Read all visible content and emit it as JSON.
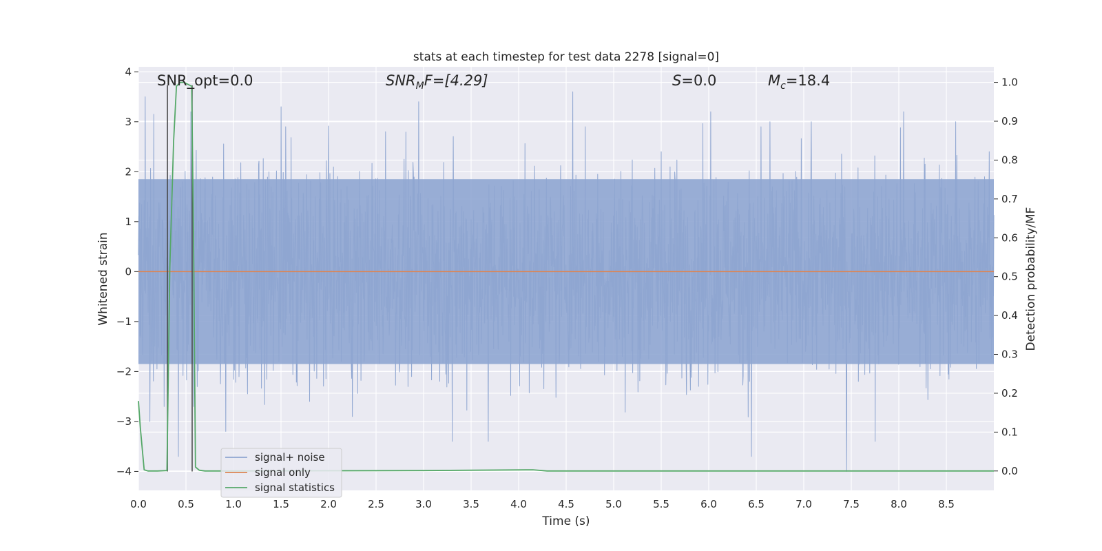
{
  "chart_data": {
    "type": "line",
    "title": "stats at each timestep for test data 2278 [signal=0]",
    "xlabel": "Time (s)",
    "ylabel": "Whitened strain",
    "y2label": "Detection probability/MF",
    "xlim": [
      0.0,
      9.0
    ],
    "ylim": [
      -4.38,
      4.1
    ],
    "y2lim": [
      -0.05,
      1.04
    ],
    "x_ticks": [
      "0.0",
      "0.5",
      "1.0",
      "1.5",
      "2.0",
      "2.5",
      "3.0",
      "3.5",
      "4.0",
      "4.5",
      "5.0",
      "5.5",
      "6.0",
      "6.5",
      "7.0",
      "7.5",
      "8.0",
      "8.5"
    ],
    "y_ticks": [
      "4",
      "3",
      "2",
      "1",
      "0",
      "−1",
      "−2",
      "−3",
      "−4"
    ],
    "y2_ticks": [
      "1.0",
      "0.9",
      "0.8",
      "0.7",
      "0.6",
      "0.5",
      "0.4",
      "0.3",
      "0.2",
      "0.1",
      "0.0"
    ],
    "grid": true,
    "legend_position": "lower-left",
    "annotations": {
      "snr_opt": "SNR_opt=0.0",
      "snr_mf_main": "SNR",
      "snr_mf_sub": "M",
      "snr_mf_rest": "F=[4.29]",
      "s_main": "S",
      "s_rest": "=0.0",
      "mc_main": "M",
      "mc_sub": "c",
      "mc_rest": "=18.4"
    },
    "series": [
      {
        "name": "signal+ noise",
        "color": "#8fa6d1",
        "note_envelope": "dense whitened noise, roughly ±2.5 with spikes to ±3.8",
        "spikes": [
          [
            0.07,
            3.5
          ],
          [
            0.12,
            -3.0
          ],
          [
            0.16,
            3.15
          ],
          [
            0.27,
            -2.7
          ],
          [
            0.42,
            -3.7
          ],
          [
            0.55,
            3.2
          ],
          [
            0.58,
            -2.7
          ],
          [
            0.92,
            -3.2
          ],
          [
            1.5,
            3.3
          ],
          [
            1.55,
            2.9
          ],
          [
            1.8,
            -2.6
          ],
          [
            2.25,
            -2.9
          ],
          [
            2.6,
            2.8
          ],
          [
            2.95,
            3.4
          ],
          [
            3.3,
            -3.4
          ],
          [
            3.68,
            -3.4
          ],
          [
            4.57,
            3.6
          ],
          [
            4.7,
            2.9
          ],
          [
            5.5,
            2.4
          ],
          [
            6.02,
            3.2
          ],
          [
            6.45,
            -3.7
          ],
          [
            6.55,
            2.9
          ],
          [
            7.08,
            3.0
          ],
          [
            7.45,
            -4.0
          ],
          [
            7.75,
            -3.4
          ],
          [
            8.05,
            3.2
          ],
          [
            8.6,
            3.0
          ],
          [
            8.95,
            2.4
          ]
        ]
      },
      {
        "name": "signal only",
        "color": "#dd8452",
        "x": [
          0.0,
          9.0
        ],
        "y": [
          0.0,
          0.0
        ]
      },
      {
        "name": "signal statistics",
        "color": "#55a868",
        "axis": "right",
        "x": [
          0.0,
          0.02,
          0.06,
          0.1,
          0.2,
          0.3,
          0.33,
          0.37,
          0.4,
          0.44,
          0.48,
          0.52,
          0.56,
          0.58,
          0.6,
          0.64,
          0.7,
          1.0,
          3.0,
          4.15,
          4.3,
          9.0
        ],
        "y": [
          0.18,
          0.11,
          0.003,
          0.0,
          0.0,
          0.001,
          0.52,
          0.85,
          0.99,
          1.0,
          1.0,
          0.995,
          0.99,
          0.6,
          0.01,
          0.002,
          0.0,
          0.0,
          0.001,
          0.003,
          0.0,
          0.0
        ]
      }
    ],
    "markers": {
      "vlines": [
        {
          "x": 0.305,
          "y_from": -4.0,
          "y_to": 3.73,
          "color": "#444444"
        },
        {
          "x": 0.565,
          "y_from": -4.0,
          "y_to": 3.73,
          "color": "#444444"
        }
      ]
    }
  }
}
